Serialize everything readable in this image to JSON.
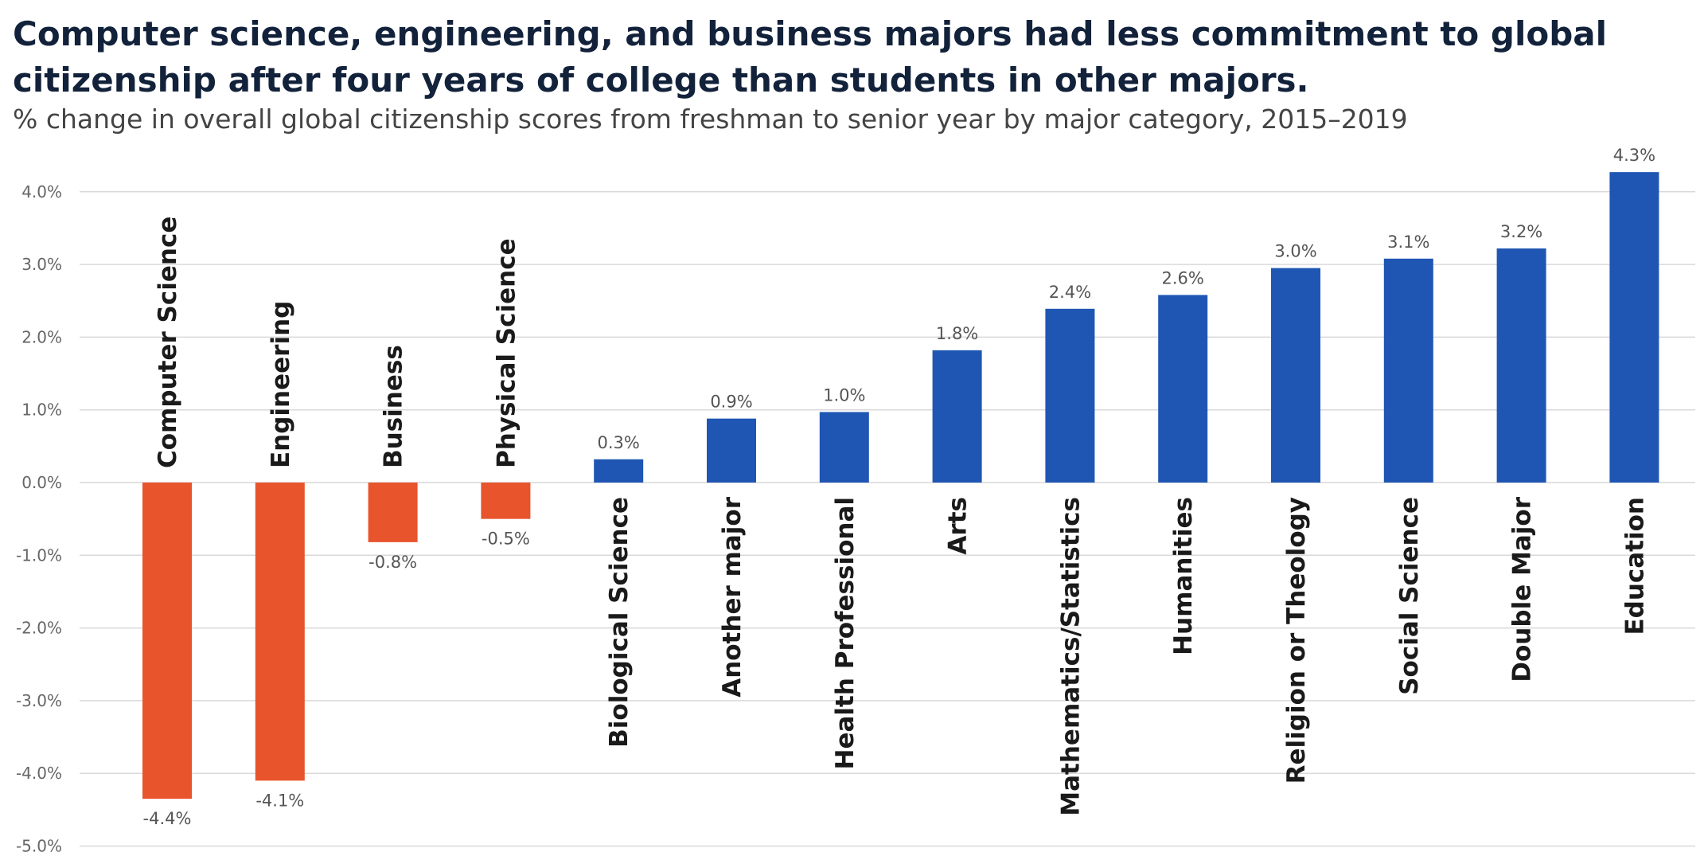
{
  "title": "Computer science, engineering, and business majors had less commitment to global citizenship after four years of college than students in other majors.",
  "subtitle": "% change in overall global citizenship scores from freshman to senior year by major category, 2015–2019",
  "colors": {
    "negative": "#e8542c",
    "positive": "#1f56b3",
    "grid": "#d9d9d9"
  },
  "chart_data": {
    "type": "bar",
    "title": "Computer science, engineering, and business majors had less commitment to global citizenship after four years of college than students in other majors.",
    "subtitle": "% change in overall global citizenship scores from freshman to senior year by major category, 2015–2019",
    "xlabel": "",
    "ylabel": "",
    "ylim": [
      -5.0,
      4.3
    ],
    "yticks": [
      4.0,
      3.0,
      2.0,
      1.0,
      0.0,
      -1.0,
      -2.0,
      -3.0,
      -4.0,
      -5.0
    ],
    "ytick_labels": [
      "4.0%",
      "3.0%",
      "2.0%",
      "1.0%",
      "0.0%",
      "-1.0%",
      "-2.0%",
      "-3.0%",
      "-4.0%",
      "-5.0%"
    ],
    "grid": true,
    "legend": "none",
    "categories": [
      "Computer Science",
      "Engineering",
      "Business",
      "Physical Science",
      "Biological Science",
      "Another major",
      "Health Professional",
      "Arts",
      "Mathematics/Statistics",
      "Humanities",
      "Religion or Theology",
      "Social Science",
      "Double Major",
      "Education"
    ],
    "values": [
      -4.35,
      -4.1,
      -0.82,
      -0.5,
      0.32,
      0.88,
      0.97,
      1.82,
      2.39,
      2.58,
      2.95,
      3.08,
      3.22,
      4.27
    ],
    "value_labels": [
      "-4.4%",
      "-4.1%",
      "-0.8%",
      "-0.5%",
      "0.3%",
      "0.9%",
      "1.0%",
      "1.8%",
      "2.4%",
      "2.6%",
      "3.0%",
      "3.1%",
      "3.2%",
      "4.3%"
    ]
  }
}
